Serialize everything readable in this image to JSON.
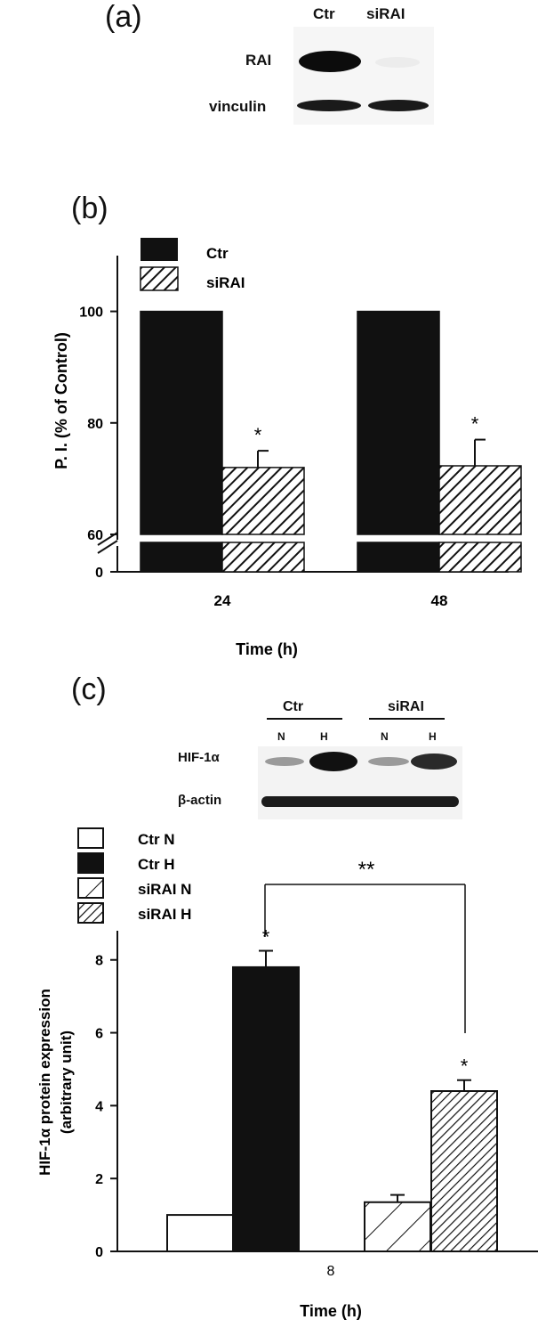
{
  "panel_a": {
    "letter": "(a)",
    "lanes": [
      "Ctr",
      "siRAI"
    ],
    "rows": [
      "RAI",
      "vinculin"
    ]
  },
  "panel_c_blot": {
    "groups": [
      "Ctr",
      "siRAI"
    ],
    "lanes": [
      "N",
      "H",
      "N",
      "H"
    ],
    "rows": [
      "HIF-1α",
      "β-actin"
    ]
  },
  "chart_data": [
    {
      "panel": "(b)",
      "type": "bar",
      "categories": [
        "24",
        "48"
      ],
      "series": [
        {
          "name": "Ctr",
          "values": [
            100,
            100
          ]
        },
        {
          "name": "siRAI",
          "values": [
            72,
            72.3
          ],
          "errors": [
            3,
            4.7
          ]
        }
      ],
      "ylabel": "P. I. (% of Control)",
      "xlabel": "Time (h)",
      "yticks": [
        "0",
        "60",
        "80",
        "100"
      ],
      "axis_break": [
        0,
        60
      ],
      "ylim": [
        60,
        110
      ],
      "significance": [
        "*",
        "*"
      ],
      "legend": "top-left",
      "colors": {
        "Ctr": "#111111",
        "siRAI": "hatched"
      }
    },
    {
      "panel": "(c)",
      "type": "bar",
      "categories": [
        "Ctr N",
        "Ctr H",
        "siRAI N",
        "siRAI H"
      ],
      "values": [
        1.0,
        7.8,
        1.35,
        4.4
      ],
      "errors": [
        0,
        0.45,
        0.2,
        0.3
      ],
      "ylabel_line1": "HIF-1α protein expression",
      "ylabel_line2": "(arbitrary unit)",
      "xlabel": "Time (h)",
      "x_tick_text": "8",
      "yticks": [
        "0",
        "2",
        "4",
        "6",
        "8"
      ],
      "ylim": [
        0,
        8.8
      ],
      "significance": [
        "",
        "*",
        "",
        "*"
      ],
      "bracket_label": "**",
      "legend": "top-left",
      "colors": {
        "Ctr N": "#ffffff",
        "Ctr H": "#111111",
        "siRAI N": "sparse-hatch",
        "siRAI H": "dense-hatch"
      }
    }
  ]
}
